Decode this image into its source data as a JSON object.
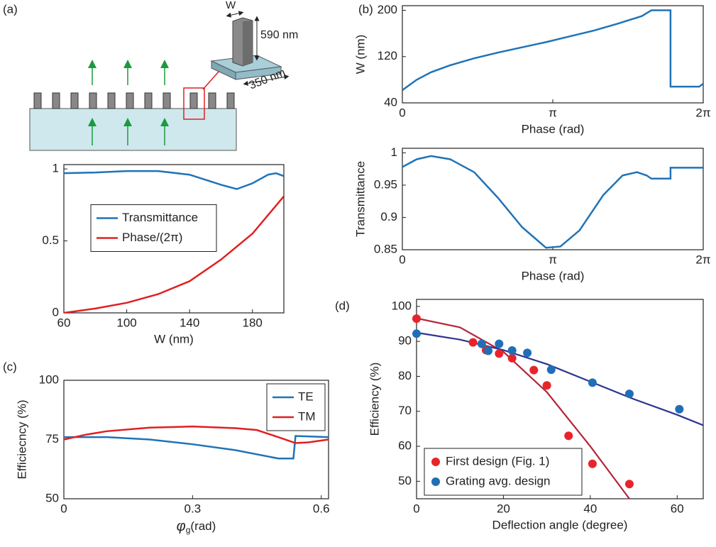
{
  "panel_labels": [
    "(a)",
    "(b)",
    "(c)",
    "(d)"
  ],
  "schematic": {
    "labels": [
      "W",
      "590 nm",
      "350 nm"
    ]
  },
  "chart_data": [
    {
      "type": "line",
      "x_label": "W (nm)",
      "y_label": "",
      "legend": "center left",
      "xlim": [
        60,
        200
      ],
      "xticks": [
        60,
        100,
        140,
        180
      ],
      "ylim": [
        0,
        1.03
      ],
      "yticks": [
        0,
        0.5,
        1
      ],
      "series": [
        {
          "name": "Transmittance",
          "color": "#1f73b7",
          "x": [
            60,
            80,
            100,
            120,
            140,
            160,
            170,
            180,
            190,
            195,
            200
          ],
          "values": [
            0.97,
            0.975,
            0.985,
            0.985,
            0.96,
            0.89,
            0.86,
            0.9,
            0.96,
            0.97,
            0.95
          ]
        },
        {
          "name": "Phase/(2π)",
          "color": "#e02020",
          "x": [
            60,
            80,
            100,
            120,
            140,
            160,
            180,
            200
          ],
          "values": [
            0,
            0.03,
            0.07,
            0.13,
            0.22,
            0.37,
            0.55,
            0.81
          ]
        }
      ]
    },
    {
      "type": "line",
      "x_label": "Phase (rad)",
      "y_label": "W (nm)",
      "xlim": [
        0,
        6.28319
      ],
      "xticks": [
        0,
        {
          "value": 3.14159,
          "label": "π"
        },
        {
          "value": 6.28319,
          "label": "2π"
        }
      ],
      "ylim": [
        40,
        208
      ],
      "yticks": [
        40,
        120,
        200
      ],
      "series": [
        {
          "color": "#1f73b7",
          "x": [
            0,
            0.3,
            0.6,
            1,
            1.5,
            2,
            2.5,
            3,
            3.5,
            4,
            4.5,
            5,
            5.2,
            5.6,
            5.6,
            6.2,
            6.28
          ],
          "values": [
            62,
            80,
            93,
            105,
            117,
            127,
            136,
            145,
            155,
            165,
            177,
            190,
            200,
            200,
            68,
            68,
            73
          ]
        }
      ]
    },
    {
      "type": "line",
      "x_label": "Phase (rad)",
      "y_label": "Transmittance",
      "xlim": [
        0,
        6.28319
      ],
      "xticks": [
        0,
        {
          "value": 3.14159,
          "label": "π"
        },
        {
          "value": 6.28319,
          "label": "2π"
        }
      ],
      "ylim": [
        0.85,
        1.007
      ],
      "yticks": [
        0.85,
        0.9,
        0.95,
        1
      ],
      "series": [
        {
          "color": "#1f73b7",
          "x": [
            0,
            0.3,
            0.6,
            1,
            1.5,
            2,
            2.5,
            3,
            3.3,
            3.7,
            4.2,
            4.6,
            4.9,
            5.1,
            5.2,
            5.6,
            5.6,
            6.28
          ],
          "values": [
            0.978,
            0.99,
            0.995,
            0.99,
            0.97,
            0.93,
            0.885,
            0.853,
            0.855,
            0.88,
            0.935,
            0.965,
            0.97,
            0.965,
            0.96,
            0.96,
            0.977,
            0.977
          ]
        }
      ]
    },
    {
      "type": "line",
      "x_label": {
        "symbol": "φ",
        "subscript": "g",
        "unit": "(rad)"
      },
      "y_label": "Efficiecncy (%)",
      "legend": "upper right",
      "xlim": [
        0,
        0.617
      ],
      "xticks": [
        0,
        0.3,
        0.6
      ],
      "ylim": [
        50,
        100
      ],
      "yticks": [
        50,
        75,
        100
      ],
      "series": [
        {
          "name": "TE",
          "color": "#1f73b7",
          "x": [
            0,
            0.1,
            0.2,
            0.3,
            0.4,
            0.5,
            0.535,
            0.54,
            0.617
          ],
          "values": [
            76,
            76,
            75,
            73,
            70.5,
            67,
            67,
            76.5,
            76
          ]
        },
        {
          "name": "TM",
          "color": "#e02020",
          "x": [
            0,
            0.05,
            0.1,
            0.2,
            0.3,
            0.4,
            0.45,
            0.5,
            0.54,
            0.57,
            0.617
          ],
          "values": [
            75,
            77,
            78.5,
            80,
            80.5,
            79.8,
            79,
            76,
            73.5,
            73.8,
            75
          ]
        }
      ]
    },
    {
      "type": "scatter",
      "x_label": "Deflection angle (degree)",
      "y_label": "Efficiency (%)",
      "legend": "lower left",
      "xlim": [
        0,
        66
      ],
      "xticks": [
        0,
        20,
        40,
        60
      ],
      "ylim": [
        45,
        102
      ],
      "yticks": [
        50,
        60,
        70,
        80,
        90,
        100
      ],
      "series": [
        {
          "name": "First design (Fig. 1)",
          "color": "#e8242b",
          "x": [
            0,
            13,
            16,
            19,
            22,
            27,
            30,
            35,
            40.5,
            49
          ],
          "values": [
            96.5,
            89.7,
            87.5,
            86.5,
            85.2,
            81.8,
            77.4,
            63,
            55,
            49.2
          ]
        },
        {
          "name": "Grating avg. design",
          "color": "#1f6fb8",
          "x": [
            0,
            15,
            16.5,
            19,
            22,
            25.5,
            31,
            40.5,
            49,
            60.5
          ],
          "values": [
            92.2,
            89.3,
            87.3,
            89.3,
            87.4,
            86.7,
            81.9,
            78.2,
            75,
            70.6
          ]
        }
      ],
      "fit_lines": [
        {
          "color": "#b5253a",
          "x": [
            0,
            10,
            20,
            30,
            40,
            49
          ],
          "values": [
            96.6,
            94,
            87,
            75.5,
            60,
            45
          ]
        },
        {
          "color": "#2b3590",
          "x": [
            0,
            10,
            20,
            30,
            40,
            50,
            60,
            66
          ],
          "values": [
            92.5,
            90.5,
            87.5,
            83.5,
            78.5,
            73.5,
            69,
            66
          ]
        }
      ]
    }
  ]
}
